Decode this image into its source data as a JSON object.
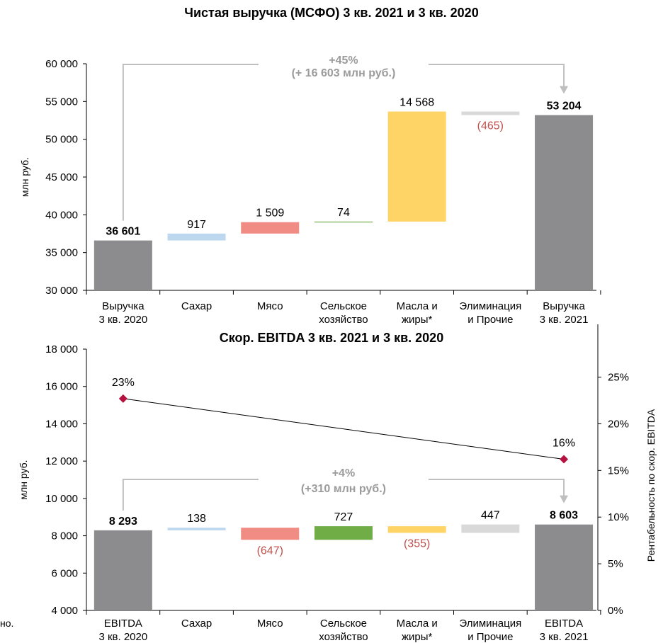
{
  "footnote": "но.",
  "chart_data": [
    {
      "type": "waterfall",
      "title": "Чистая выручка (МСФО) 3 кв. 2021 и 3 кв. 2020",
      "ylabel": "млн руб.",
      "ylim": [
        30000,
        60000
      ],
      "yticks": [
        30000,
        35000,
        40000,
        45000,
        50000,
        55000,
        60000
      ],
      "ytick_labels": [
        "30 000",
        "35 000",
        "40 000",
        "45 000",
        "50 000",
        "55 000",
        "60 000"
      ],
      "steps": [
        {
          "category": [
            "Выручка",
            "3 кв. 2020"
          ],
          "kind": "total",
          "value": 36601,
          "label": "36 601",
          "color": "#8c8c8e"
        },
        {
          "category": [
            "Сахар"
          ],
          "kind": "delta",
          "value": 917,
          "label": "917",
          "color": "#bdd7ee"
        },
        {
          "category": [
            "Мясо"
          ],
          "kind": "delta",
          "value": 1509,
          "label": "1 509",
          "color": "#f08c84"
        },
        {
          "category": [
            "Сельское",
            "хозяйство"
          ],
          "kind": "delta",
          "value": 74,
          "label": "74",
          "color": "#70ad47"
        },
        {
          "category": [
            "Масла и",
            "жиры*"
          ],
          "kind": "delta",
          "value": 14568,
          "label": "14 568",
          "color": "#ffd466"
        },
        {
          "category": [
            "Элиминация",
            "и Прочие"
          ],
          "kind": "delta",
          "value": -465,
          "label": "(465)",
          "color": "#d9d9d9"
        },
        {
          "category": [
            "Выручка",
            "3 кв. 2021"
          ],
          "kind": "total",
          "value": 53204,
          "label": "53 204",
          "color": "#8c8c8e"
        }
      ],
      "annotation": [
        "+45%",
        "(+ 16 603  млн руб.)"
      ]
    },
    {
      "type": "waterfall",
      "title": "Скор. EBITDA 3 кв. 2021 и 3 кв. 2020",
      "ylabel": "млн руб.",
      "y2label": "Рентабельность по скор. EBITDA",
      "ylim": [
        4000,
        18000
      ],
      "yticks": [
        4000,
        6000,
        8000,
        10000,
        12000,
        14000,
        16000,
        18000
      ],
      "ytick_labels": [
        "4 000",
        "6 000",
        "8 000",
        "10 000",
        "12 000",
        "14 000",
        "16 000",
        "18 000"
      ],
      "y2lim": [
        0,
        0.28
      ],
      "y2ticks": [
        0,
        0.05,
        0.1,
        0.15,
        0.2,
        0.25
      ],
      "y2tick_labels": [
        "0%",
        "5%",
        "10%",
        "15%",
        "20%",
        "25%"
      ],
      "steps": [
        {
          "category": [
            "EBITDA",
            "3 кв. 2020"
          ],
          "kind": "total",
          "value": 8293,
          "label": "8 293",
          "color": "#8c8c8e"
        },
        {
          "category": [
            "Сахар"
          ],
          "kind": "delta",
          "value": 138,
          "label": "138",
          "color": "#bdd7ee"
        },
        {
          "category": [
            "Мясо"
          ],
          "kind": "delta",
          "value": -647,
          "label": "(647)",
          "color": "#f08c84"
        },
        {
          "category": [
            "Сельское",
            "хозяйство"
          ],
          "kind": "delta",
          "value": 727,
          "label": "727",
          "color": "#70ad47"
        },
        {
          "category": [
            "Масла и",
            "жиры*"
          ],
          "kind": "delta",
          "value": -355,
          "label": "(355)",
          "color": "#ffd466"
        },
        {
          "category": [
            "Элиминация",
            "и Прочие"
          ],
          "kind": "delta",
          "value": 447,
          "label": "447",
          "color": "#d9d9d9"
        },
        {
          "category": [
            "EBITDA",
            "3 кв. 2021"
          ],
          "kind": "total",
          "value": 8603,
          "label": "8 603",
          "color": "#8c8c8e"
        }
      ],
      "margin_series": {
        "points": [
          {
            "step": 0,
            "value": 0.227,
            "label": "23%"
          },
          {
            "step": 6,
            "value": 0.162,
            "label": "16%"
          }
        ],
        "color": "#b5123f"
      },
      "annotation": [
        "+4%",
        "(+310 млн руб.)"
      ]
    }
  ]
}
